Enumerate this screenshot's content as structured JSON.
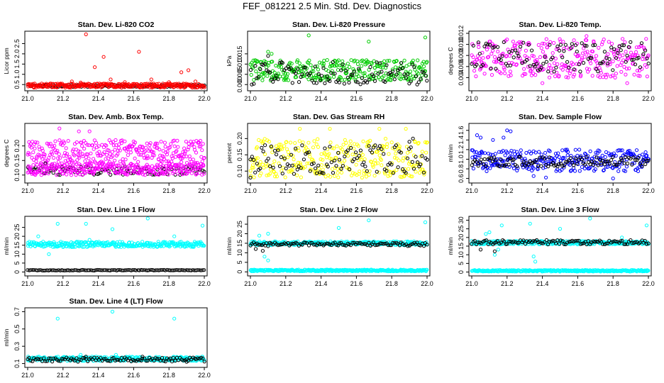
{
  "figure_title": "FEF_081221  2.5 Min. Std. Dev. Diagnostics",
  "colors": {
    "black": "#000000",
    "red": "#ff0000",
    "green": "#00cc00",
    "magenta": "#ff00ff",
    "yellow": "#ffff00",
    "blue": "#0000ff",
    "cyan": "#00ffff"
  },
  "chart_data": [
    {
      "type": "scatter",
      "title": "Stan. Dev. Li-820 CO2",
      "ylabel": "Licor ppm",
      "xlim": [
        21.0,
        22.0
      ],
      "ylim": [
        0.3,
        3.0
      ],
      "xticks": [
        "21.0",
        "21.2",
        "21.4",
        "21.6",
        "21.8",
        "22.0"
      ],
      "yticks": [
        "0.5",
        "1.0",
        "1.5",
        "2.0",
        "2.5"
      ],
      "series": [
        {
          "name": "black",
          "color": "#000000",
          "band": [
            0.38,
            0.5
          ],
          "outliers": []
        },
        {
          "name": "red",
          "color": "#ff0000",
          "band": [
            0.35,
            0.55
          ],
          "outliers": [
            [
              21.33,
              2.95
            ],
            [
              21.38,
              1.35
            ],
            [
              21.43,
              1.85
            ],
            [
              21.47,
              0.75
            ],
            [
              21.55,
              0.62
            ],
            [
              21.63,
              2.1
            ],
            [
              21.7,
              0.75
            ],
            [
              21.8,
              0.62
            ],
            [
              21.87,
              1.1
            ],
            [
              21.91,
              1.2
            ],
            [
              21.25,
              0.65
            ],
            [
              21.3,
              0.6
            ],
            [
              21.95,
              0.65
            ]
          ]
        }
      ]
    },
    {
      "type": "scatter",
      "title": "Stan. Dev. Li-820 Pressure",
      "ylabel": "kPa",
      "xlim": [
        21.0,
        22.0
      ],
      "ylim": [
        -0.002,
        0.025
      ],
      "xticks": [
        "21.0",
        "21.2",
        "21.4",
        "21.6",
        "21.8",
        "22.0"
      ],
      "yticks": [
        "0.000",
        "0.005",
        "0.010",
        "0.015"
      ],
      "series": [
        {
          "name": "green",
          "color": "#00cc00",
          "band": [
            0.002,
            0.012
          ],
          "outliers": [
            [
              21.33,
              0.024
            ],
            [
              21.67,
              0.021
            ],
            [
              21.99,
              0.023
            ],
            [
              21.1,
              0.016
            ],
            [
              21.12,
              0.015
            ]
          ]
        },
        {
          "name": "black",
          "color": "#000000",
          "band": [
            0.0,
            0.011
          ],
          "outliers": [
            [
              21.1,
              0.014
            ]
          ]
        }
      ]
    },
    {
      "type": "scatter",
      "title": "Stan. Dev. Li-820 Temp.",
      "ylabel": "degrees C",
      "xlim": [
        21.0,
        22.0
      ],
      "ylim": [
        0.002,
        0.012
      ],
      "xticks": [
        "21.0",
        "21.2",
        "21.4",
        "21.6",
        "21.8",
        "22.0"
      ],
      "yticks": [
        "0.004",
        "0.006",
        "0.008",
        "0.010",
        "0.012"
      ],
      "series": [
        {
          "name": "magenta",
          "color": "#ff00ff",
          "band": [
            0.004,
            0.011
          ],
          "outliers": [
            [
              21.4,
              0.003
            ],
            [
              21.88,
              0.003
            ],
            [
              21.65,
              0.0115
            ]
          ]
        },
        {
          "name": "black",
          "color": "#000000",
          "band": [
            0.005,
            0.0105
          ],
          "outliers": []
        }
      ]
    },
    {
      "type": "scatter",
      "title": "Stan. Dev. Amb. Box Temp.",
      "ylabel": "degrees C",
      "xlim": [
        21.0,
        22.0
      ],
      "ylim": [
        0.08,
        0.27
      ],
      "xticks": [
        "21.0",
        "21.2",
        "21.4",
        "21.6",
        "21.8",
        "22.0"
      ],
      "yticks": [
        "0.10",
        "0.15",
        "0.20"
      ],
      "series": [
        {
          "name": "magenta",
          "color": "#ff00ff",
          "band": [
            0.14,
            0.22
          ],
          "outliers": [
            [
              21.18,
              0.26
            ],
            [
              21.35,
              0.25
            ],
            [
              21.29,
              0.25
            ],
            [
              21.08,
              0.11
            ],
            [
              21.45,
              0.12
            ]
          ]
        },
        {
          "name": "black",
          "color": "#000000",
          "band": [
            0.1,
            0.13
          ],
          "outliers": [
            [
              21.1,
              0.14
            ]
          ]
        },
        {
          "name": "magenta-low",
          "color": "#ff00ff",
          "band": [
            0.1,
            0.14
          ],
          "outliers": []
        }
      ]
    },
    {
      "type": "scatter",
      "title": "Stan. Dev. Gas Stream RH",
      "ylabel": "percent",
      "xlim": [
        21.0,
        22.0
      ],
      "ylim": [
        0.07,
        0.24
      ],
      "xticks": [
        "21.0",
        "21.2",
        "21.4",
        "21.6",
        "21.8",
        "22.0"
      ],
      "yticks": [
        "0.10",
        "0.15",
        "0.20"
      ],
      "series": [
        {
          "name": "yellow",
          "color": "#ffff00",
          "band": [
            0.08,
            0.2
          ],
          "outliers": [
            [
              21.28,
              0.23
            ],
            [
              21.45,
              0.23
            ],
            [
              21.73,
              0.23
            ],
            [
              21.88,
              0.23
            ]
          ]
        },
        {
          "name": "black",
          "color": "#000000",
          "band": [
            0.09,
            0.18
          ],
          "outliers": [
            [
              21.9,
              0.19
            ],
            [
              21.92,
              0.2
            ],
            [
              21.0,
              0.08
            ]
          ]
        }
      ]
    },
    {
      "type": "scatter",
      "title": "Stan. Dev. Sample Flow",
      "ylabel": "ml/min",
      "xlim": [
        21.0,
        22.0
      ],
      "ylim": [
        0.55,
        1.7
      ],
      "xticks": [
        "21.0",
        "21.2",
        "21.4",
        "21.6",
        "21.8",
        "22.0"
      ],
      "yticks": [
        "0.6",
        "0.8",
        "1.0",
        "1.2",
        "1.4",
        "1.6"
      ],
      "series": [
        {
          "name": "blue",
          "color": "#0000ff",
          "band": [
            0.75,
            1.2
          ],
          "outliers": [
            [
              21.03,
              1.5
            ],
            [
              21.2,
              1.6
            ],
            [
              21.22,
              1.58
            ],
            [
              21.18,
              1.45
            ],
            [
              21.12,
              1.4
            ],
            [
              21.05,
              1.45
            ],
            [
              21.35,
              0.65
            ],
            [
              21.42,
              0.62
            ],
            [
              21.8,
              0.6
            ]
          ]
        },
        {
          "name": "black",
          "color": "#000000",
          "band": [
            0.85,
            1.05
          ],
          "outliers": []
        }
      ]
    },
    {
      "type": "scatter",
      "title": "Stan. Dev. Line 1 Flow",
      "ylabel": "ml/min",
      "xlim": [
        21.0,
        22.0
      ],
      "ylim": [
        -1,
        30
      ],
      "xticks": [
        "21.0",
        "21.2",
        "21.4",
        "21.6",
        "21.8",
        "22.0"
      ],
      "yticks": [
        "0",
        "5",
        "10",
        "15",
        "20",
        "25"
      ],
      "series": [
        {
          "name": "cyan",
          "color": "#00ffff",
          "band": [
            14,
            17
          ],
          "outliers": [
            [
              21.17,
              27
            ],
            [
              21.33,
              27
            ],
            [
              21.48,
              24
            ],
            [
              21.68,
              30
            ],
            [
              21.83,
              20
            ],
            [
              21.99,
              26
            ],
            [
              21.06,
              20
            ],
            [
              21.12,
              10
            ],
            [
              21.2,
              14
            ],
            [
              21.25,
              14
            ],
            [
              21.35,
              18
            ]
          ]
        },
        {
          "name": "black",
          "color": "#000000",
          "band": [
            0.8,
            1.2
          ],
          "outliers": []
        }
      ]
    },
    {
      "type": "scatter",
      "title": "Stan. Dev. Line 2 Flow",
      "ylabel": "ml/min",
      "xlim": [
        21.0,
        22.0
      ],
      "ylim": [
        -1,
        28
      ],
      "xticks": [
        "21.0",
        "21.2",
        "21.4",
        "21.6",
        "21.8",
        "22.0"
      ],
      "yticks": [
        "0",
        "5",
        "10",
        "15",
        "20",
        "25"
      ],
      "series": [
        {
          "name": "cyan",
          "color": "#00ffff",
          "band": [
            0.3,
            1.2
          ],
          "outliers": []
        },
        {
          "name": "cyan-upper",
          "color": "#00ffff",
          "band": [
            14,
            16
          ],
          "outliers": [
            [
              21.05,
              19
            ],
            [
              21.1,
              20
            ],
            [
              21.5,
              23
            ],
            [
              21.67,
              27
            ],
            [
              21.99,
              26
            ],
            [
              21.08,
              8
            ],
            [
              21.1,
              6
            ]
          ]
        },
        {
          "name": "black",
          "color": "#000000",
          "band": [
            13.5,
            15.5
          ],
          "outliers": [
            [
              21.03,
              12
            ],
            [
              21.07,
              11
            ]
          ]
        }
      ]
    },
    {
      "type": "scatter",
      "title": "Stan. Dev. Line 3 Flow",
      "ylabel": "ml/min",
      "xlim": [
        21.0,
        22.0
      ],
      "ylim": [
        -1,
        31
      ],
      "xticks": [
        "21.0",
        "21.2",
        "21.4",
        "21.6",
        "21.8",
        "22.0"
      ],
      "yticks": [
        "0",
        "5",
        "10",
        "15",
        "20",
        "25",
        "30"
      ],
      "series": [
        {
          "name": "cyan",
          "color": "#00ffff",
          "band": [
            0.3,
            1.2
          ],
          "outliers": [
            [
              21.35,
              9
            ],
            [
              21.36,
              6
            ]
          ]
        },
        {
          "name": "cyan-upper",
          "color": "#00ffff",
          "band": [
            16,
            18
          ],
          "outliers": [
            [
              21.08,
              22
            ],
            [
              21.1,
              23
            ],
            [
              21.17,
              27
            ],
            [
              21.33,
              28
            ],
            [
              21.5,
              25
            ],
            [
              21.67,
              31
            ],
            [
              21.99,
              27
            ],
            [
              21.15,
              13
            ],
            [
              21.13,
              10
            ],
            [
              21.85,
              20
            ]
          ]
        },
        {
          "name": "black",
          "color": "#000000",
          "band": [
            16,
            18.5
          ],
          "outliers": [
            [
              21.05,
              13
            ],
            [
              21.13,
              12
            ]
          ]
        }
      ]
    },
    {
      "type": "scatter",
      "title": "Stan. Dev. Line 4 (LT) Flow",
      "ylabel": "ml/min",
      "xlim": [
        21.0,
        22.0
      ],
      "ylim": [
        0.08,
        0.72
      ],
      "xticks": [
        "21.0",
        "21.2",
        "21.4",
        "21.6",
        "21.8",
        "22.0"
      ],
      "yticks": [
        "0.1",
        "0.3",
        "0.5",
        "0.7"
      ],
      "series": [
        {
          "name": "cyan",
          "color": "#00ffff",
          "band": [
            0.13,
            0.18
          ],
          "outliers": [
            [
              21.17,
              0.62
            ],
            [
              21.48,
              0.7
            ],
            [
              21.83,
              0.62
            ],
            [
              21.5,
              0.2
            ],
            [
              21.3,
              0.2
            ]
          ]
        },
        {
          "name": "black",
          "color": "#000000",
          "band": [
            0.12,
            0.17
          ],
          "outliers": [
            [
              21.33,
              0.18
            ],
            [
              21.65,
              0.18
            ],
            [
              21.9,
              0.12
            ]
          ]
        }
      ]
    }
  ]
}
